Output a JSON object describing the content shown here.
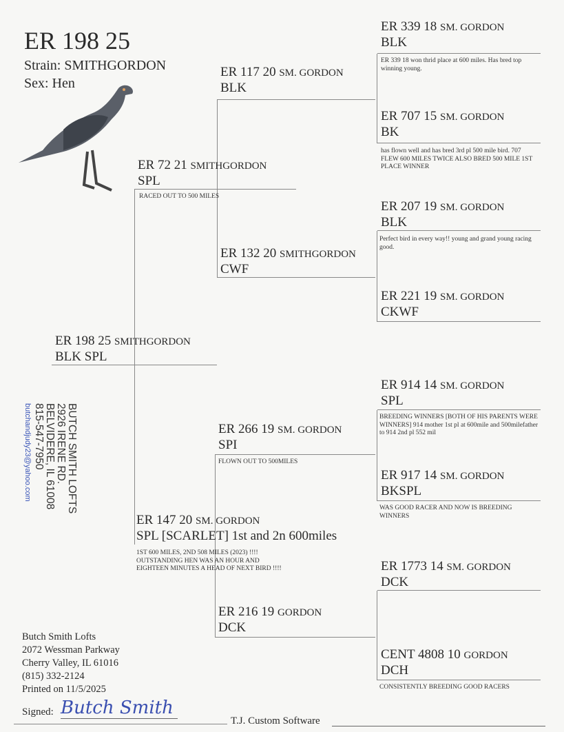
{
  "header": {
    "band": "ER 198 25",
    "strain_label": "Strain: SMITHGORDON",
    "sex_label": "Sex: Hen"
  },
  "birds": [
    {
      "band": "ER 198 25",
      "strain": "SMITHGORDON",
      "color": "BLK SPL",
      "note": ""
    },
    {
      "band": "ER 72 21",
      "strain": "SMITHGORDON",
      "color": "SPL",
      "note": "RACED OUT TO 500 MILES"
    },
    {
      "band": "ER 117 20",
      "strain": "SM. GORDON",
      "color": "BLK",
      "note": ""
    },
    {
      "band": "ER 132 20",
      "strain": "SMITHGORDON",
      "color": "CWF",
      "note": ""
    },
    {
      "band": "ER 339 18",
      "strain": "SM. GORDON",
      "color": "BLK",
      "note": "ER 339 18 won thrid place at 600 miles. Has bred top winning young."
    },
    {
      "band": "ER 707 15",
      "strain": "SM. GORDON",
      "color": "BK",
      "note": "has flown well and has bred 3rd pl 500 mile bird. 707 FLEW 600 MILES TWICE ALSO BRED 500 MILE 1ST PLACE WINNER"
    },
    {
      "band": "ER 207 19",
      "strain": "SM. GORDON",
      "color": "BLK",
      "note": "Perfect bird in every way!! young and grand young racing good."
    },
    {
      "band": "ER 221 19",
      "strain": "SM. GORDON",
      "color": "CKWF",
      "note": ""
    },
    {
      "band": "ER 147 20",
      "strain": "SM. GORDON",
      "color": "SPL  [SCARLET] 1st and 2n 600miles",
      "note": "1ST 600 MILES,  2ND 508 MILES (2023) !!!! OUTSTANDING HEN WAS AN HOUR AND EIGHTEEN MINUTES A HEAD OF NEXT BIRD !!!!"
    },
    {
      "band": "ER 266 19",
      "strain": "SM. GORDON",
      "color": "SPI",
      "note": "FLOWN OUT TO 500MILES"
    },
    {
      "band": "ER 216 19",
      "strain": "GORDON",
      "color": "DCK",
      "note": ""
    },
    {
      "band": "ER 914 14",
      "strain": "SM. GORDON",
      "color": "SPL",
      "note": "BREEDING WINNERS [BOTH OF HIS PARENTS WERE WINNERS] 914 mother 1st pl at 600mile and 500milefather to 914 2nd pl 552 mil"
    },
    {
      "band": "ER 917 14",
      "strain": "SM. GORDON",
      "color": "BKSPL",
      "note": "WAS GOOD RACER AND NOW IS BREEDING WINNERS"
    },
    {
      "band": "ER 1773 14",
      "strain": "SM. GORDON",
      "color": "DCK",
      "note": ""
    },
    {
      "band": "CENT 4808 10",
      "strain": "GORDON",
      "color": "DCH",
      "note": "CONSISTENTLY BREEDING GOOD RACERS"
    }
  ],
  "stamp": {
    "lines": [
      "BUTCH SMITH LOFTS",
      "2926 IRENE RD.",
      "BELVIDERE, IL 61008",
      "815-547-7950"
    ],
    "email": "butchandjudy23@yahoo.com"
  },
  "footer": {
    "address": [
      "Butch Smith Lofts",
      "2072 Wessman Parkway",
      "Cherry Valley, IL 61016",
      "(815) 332-2124",
      "Printed on 11/5/2025"
    ],
    "signed_label": "Signed:",
    "signature": "Butch Smith",
    "software": "T.J. Custom Software"
  },
  "colors": {
    "ink": "#2a2a2a",
    "signature": "#3a4fb0",
    "lines": "#888888"
  }
}
